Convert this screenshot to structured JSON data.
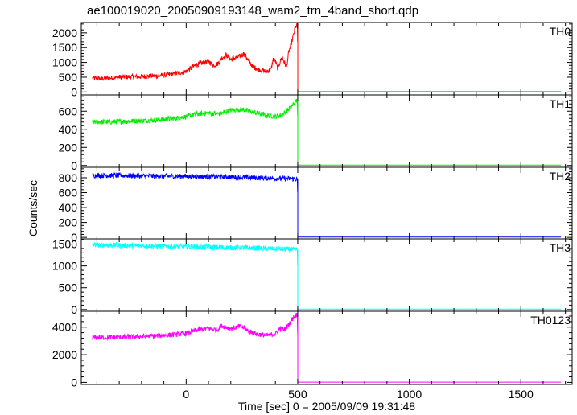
{
  "chart_data": {
    "type": "line",
    "title": "ae100019020_20050909193148_wam2_trn_4band_short.qdp",
    "xlabel": "Time [sec] 0 = 2005/09/09 19:31:48",
    "ylabel": "Counts/sec",
    "xlim": [
      -470,
      1730
    ],
    "x_ticks": [
      0,
      500,
      1000,
      1500
    ],
    "x_tick_labels": [
      "0",
      "500",
      "1000",
      "1500"
    ],
    "grid": false,
    "cutoff_time": 500,
    "end_time": 1680,
    "panels": [
      {
        "name": "TH0",
        "color": "#ff0000",
        "ylim": [
          -100,
          2350
        ],
        "y_ticks": [
          0,
          500,
          1000,
          1500,
          2000
        ],
        "y_tick_labels": [
          "0",
          "500",
          "1000",
          "1500",
          "2000"
        ],
        "x": [
          -420,
          -380,
          -300,
          -200,
          -100,
          -50,
          0,
          40,
          80,
          100,
          120,
          140,
          160,
          180,
          200,
          240,
          260,
          280,
          300,
          330,
          360,
          380,
          390,
          400,
          410,
          420,
          430,
          440,
          450,
          460,
          470,
          480,
          490,
          499,
          501,
          1680
        ],
        "y": [
          470,
          450,
          500,
          520,
          560,
          620,
          700,
          900,
          1000,
          1050,
          900,
          950,
          1150,
          1250,
          1100,
          1200,
          1300,
          1050,
          850,
          750,
          700,
          750,
          1100,
          1050,
          800,
          1000,
          1200,
          1000,
          850,
          1350,
          1600,
          1900,
          2200,
          2280,
          10,
          10
        ]
      },
      {
        "name": "TH1",
        "color": "#00ee00",
        "ylim": [
          -20,
          780
        ],
        "y_ticks": [
          0,
          200,
          400,
          600
        ],
        "y_tick_labels": [
          "0",
          "200",
          "400",
          "600"
        ],
        "x": [
          -420,
          -350,
          -250,
          -150,
          -50,
          0,
          50,
          100,
          150,
          200,
          250,
          300,
          350,
          400,
          430,
          450,
          470,
          490,
          499,
          501,
          1680
        ],
        "y": [
          480,
          480,
          490,
          500,
          520,
          540,
          570,
          580,
          570,
          610,
          620,
          590,
          560,
          540,
          560,
          600,
          650,
          700,
          730,
          5,
          5
        ]
      },
      {
        "name": "TH2",
        "color": "#0000ff",
        "ylim": [
          -20,
          940
        ],
        "y_ticks": [
          0,
          200,
          400,
          600,
          800
        ],
        "y_tick_labels": [
          "0",
          "200",
          "400",
          "600",
          "800"
        ],
        "x": [
          -420,
          -300,
          -200,
          -100,
          0,
          100,
          200,
          300,
          400,
          450,
          499,
          501,
          1680
        ],
        "y": [
          830,
          830,
          825,
          820,
          820,
          815,
          810,
          800,
          790,
          790,
          780,
          5,
          5
        ]
      },
      {
        "name": "TH3",
        "color": "#00ffff",
        "ylim": [
          -40,
          1620
        ],
        "y_ticks": [
          0,
          500,
          1000,
          1500
        ],
        "y_tick_labels": [
          "0",
          "500",
          "1000",
          "1500"
        ],
        "x": [
          -420,
          -300,
          -200,
          -100,
          0,
          100,
          200,
          300,
          400,
          450,
          499,
          501,
          1680
        ],
        "y": [
          1480,
          1470,
          1460,
          1450,
          1440,
          1430,
          1420,
          1410,
          1390,
          1380,
          1370,
          10,
          10
        ]
      },
      {
        "name": "TH0123",
        "color": "#ff00ff",
        "ylim": [
          -150,
          5150
        ],
        "y_ticks": [
          0,
          2000,
          4000
        ],
        "y_tick_labels": [
          "0",
          "2000",
          "4000"
        ],
        "x": [
          -420,
          -350,
          -250,
          -150,
          -50,
          0,
          50,
          100,
          140,
          160,
          180,
          200,
          240,
          260,
          280,
          320,
          360,
          400,
          420,
          440,
          460,
          480,
          499,
          501,
          1680
        ],
        "y": [
          3250,
          3250,
          3300,
          3350,
          3450,
          3550,
          3800,
          3900,
          3800,
          4100,
          4000,
          3900,
          4050,
          3950,
          3700,
          3500,
          3400,
          3500,
          3900,
          3800,
          4200,
          4700,
          4950,
          20,
          20
        ]
      }
    ]
  }
}
